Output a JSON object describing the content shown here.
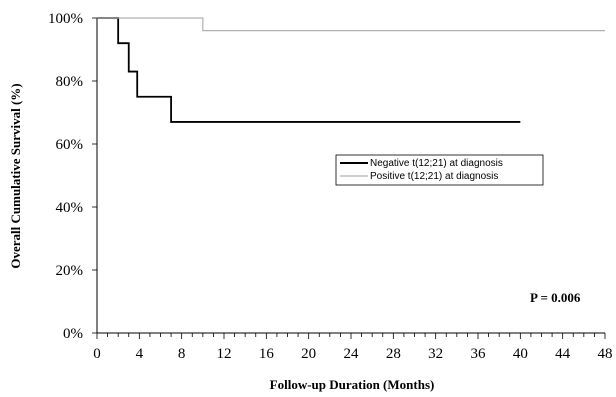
{
  "chart_data": {
    "type": "line",
    "subtype": "kaplan-meier-step",
    "xlabel": "Follow-up Duration (Months)",
    "ylabel": "Overall Cumulative Survival (%)",
    "xlim": [
      0,
      48
    ],
    "ylim": [
      0,
      100
    ],
    "x_ticks": [
      0,
      4,
      8,
      12,
      16,
      20,
      24,
      28,
      32,
      36,
      40,
      44,
      48
    ],
    "x_tick_labels": [
      "0",
      "4",
      "8",
      "12",
      "16",
      "20",
      "24",
      "28",
      "32",
      "36",
      "40",
      "44",
      "48"
    ],
    "y_ticks": [
      0,
      20,
      40,
      60,
      80,
      100
    ],
    "y_tick_labels": [
      "0%",
      "20%",
      "40%",
      "60%",
      "80%",
      "100%"
    ],
    "grid": false,
    "legend_position": "center-right",
    "series": [
      {
        "name": "Negative t(12;21) at diagnosis",
        "color": "#000000",
        "x": [
          0,
          2,
          3,
          3.8,
          7,
          40
        ],
        "y": [
          100,
          92,
          83,
          75,
          67,
          67
        ]
      },
      {
        "name": "Positive t(12;21) at diagnosis",
        "color": "#b0b0b0",
        "x": [
          0,
          10,
          48
        ],
        "y": [
          100,
          96,
          96
        ]
      }
    ],
    "annotation": "P = 0.006"
  }
}
